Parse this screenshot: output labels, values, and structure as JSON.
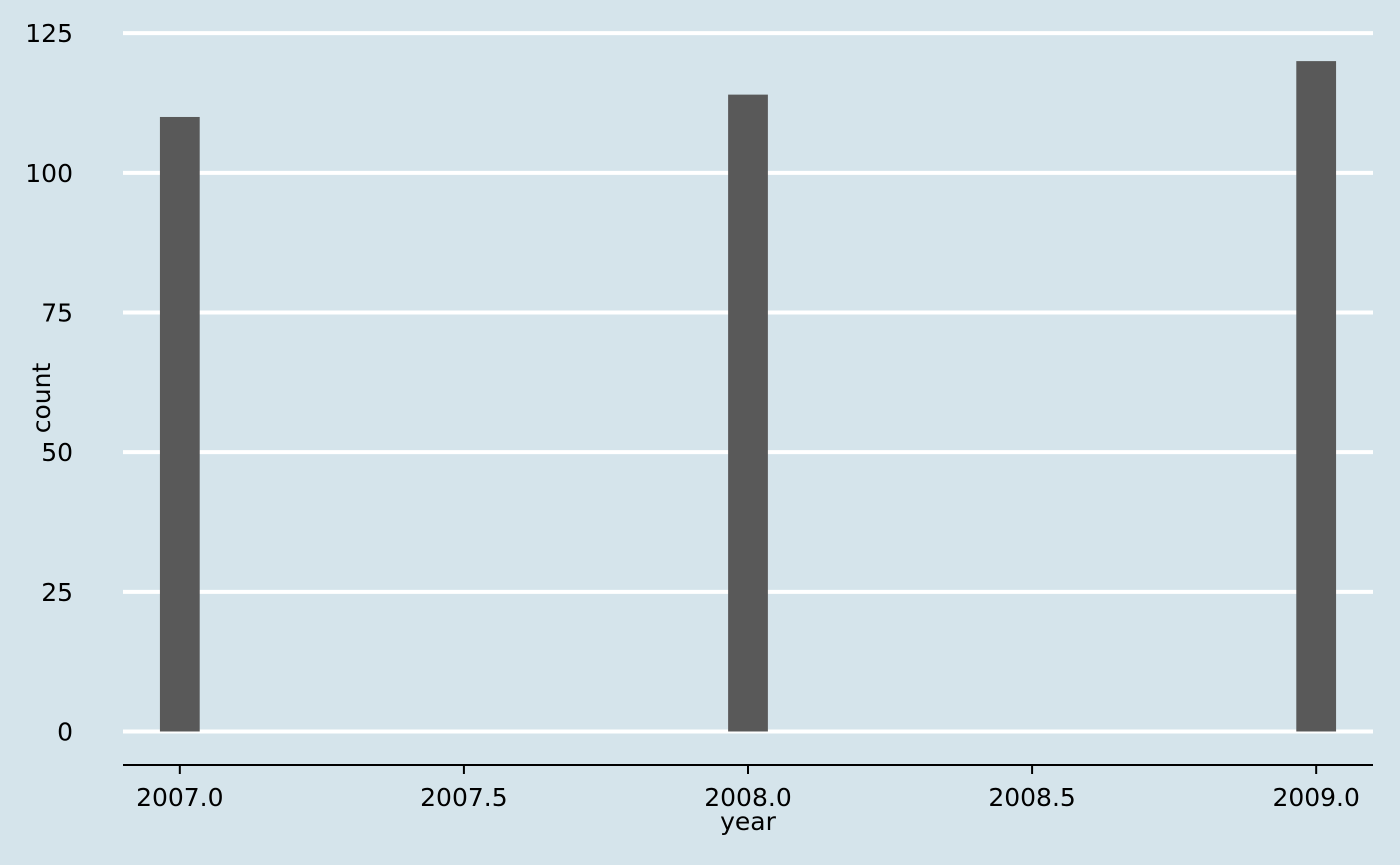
{
  "colors": {
    "background": "#d5e4eb",
    "gridline": "#ffffff",
    "bar": "#595959",
    "axis": "#000000",
    "text": "#000000"
  },
  "chart_data": {
    "type": "bar",
    "title": "",
    "xlabel": "year",
    "ylabel": "count",
    "x": [
      2007.0,
      2008.0,
      2009.0
    ],
    "values": [
      110,
      114,
      120
    ],
    "xlim": [
      2006.9,
      2009.1
    ],
    "ylim": [
      -6,
      127
    ],
    "bar_width": 0.07,
    "x_ticks": [
      2007.0,
      2007.5,
      2008.0,
      2008.5,
      2009.0
    ],
    "x_tick_labels": [
      "2007.0",
      "2007.5",
      "2008.0",
      "2008.5",
      "2009.0"
    ],
    "y_ticks": [
      0,
      25,
      50,
      75,
      100,
      125
    ],
    "y_tick_labels": [
      "0",
      "25",
      "50",
      "75",
      "100",
      "125"
    ],
    "grid": "horizontal",
    "legend": "none"
  }
}
